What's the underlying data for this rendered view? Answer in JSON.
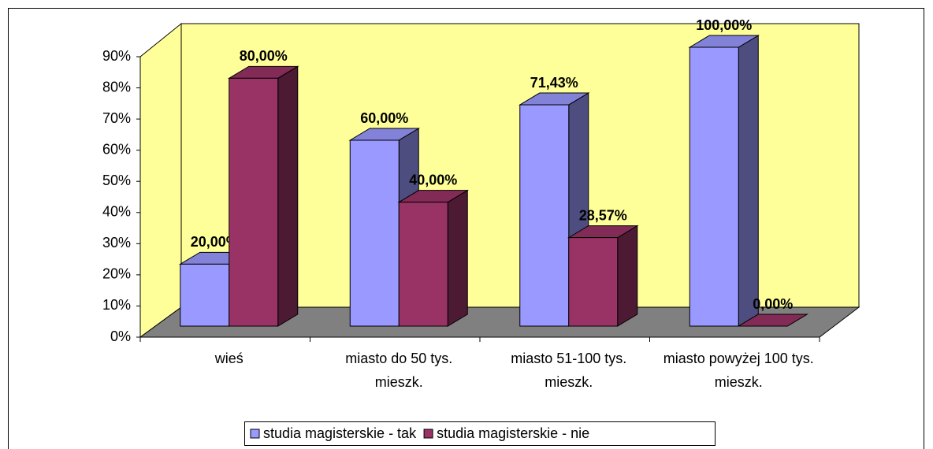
{
  "chart_data": {
    "type": "bar3d",
    "categories": [
      "wieś",
      "miasto do 50 tys. mieszk.",
      "miasto 51-100 tys. mieszk.",
      "miasto powyżej 100 tys. mieszk."
    ],
    "series": [
      {
        "name": "studia magisterskie - tak",
        "color": "#9999ff",
        "values": [
          20,
          60,
          71.43,
          100
        ],
        "value_labels": [
          "20,00%",
          "60,00%",
          "71,43%",
          "100,00%"
        ]
      },
      {
        "name": "studia magisterskie - nie",
        "color": "#993366",
        "values": [
          80,
          40,
          28.57,
          0
        ],
        "value_labels": [
          "80,00%",
          "40,00%",
          "28,57%",
          "0,00%"
        ]
      }
    ],
    "ylim": [
      0,
      90
    ],
    "yticks": [
      {
        "value": 0,
        "label": "0%"
      },
      {
        "value": 10,
        "label": "10%"
      },
      {
        "value": 20,
        "label": "20%"
      },
      {
        "value": 30,
        "label": "30%"
      },
      {
        "value": 40,
        "label": "40%"
      },
      {
        "value": 50,
        "label": "50%"
      },
      {
        "value": 60,
        "label": "60%"
      },
      {
        "value": 70,
        "label": "70%"
      },
      {
        "value": 80,
        "label": "80%"
      },
      {
        "value": 90,
        "label": "90%"
      }
    ],
    "wall_color": "#ffff99",
    "floor_color": "#808080",
    "legend": "bottom"
  }
}
